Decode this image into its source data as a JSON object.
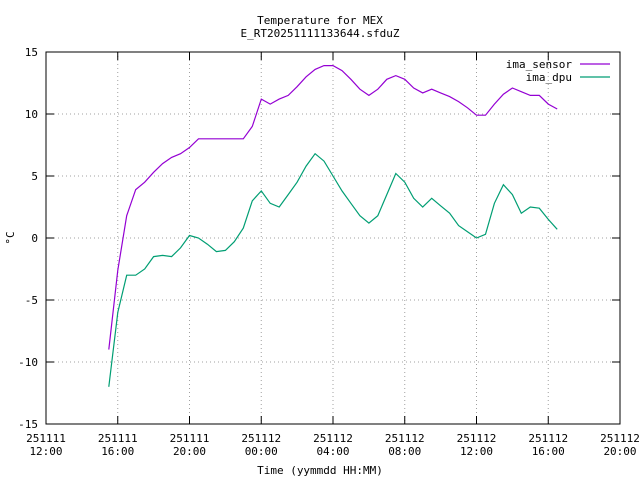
{
  "chart_data": {
    "type": "line",
    "title": "Temperature for MEX",
    "subtitle": "E_RT20251111133644.sfduZ",
    "xlabel": "Time (yymmdd HH:MM)",
    "ylabel": "°C",
    "x": [
      "251111 15:30",
      "251111 16:00",
      "251111 16:30",
      "251111 17:00",
      "251111 17:30",
      "251111 18:00",
      "251111 18:30",
      "251111 19:00",
      "251111 19:30",
      "251111 20:00",
      "251111 20:30",
      "251111 21:00",
      "251111 21:30",
      "251111 22:00",
      "251111 22:30",
      "251111 23:00",
      "251111 23:30",
      "251112 00:00",
      "251112 00:30",
      "251112 01:00",
      "251112 01:30",
      "251112 02:00",
      "251112 02:30",
      "251112 03:00",
      "251112 03:30",
      "251112 04:00",
      "251112 04:30",
      "251112 05:00",
      "251112 05:30",
      "251112 06:00",
      "251112 06:30",
      "251112 07:00",
      "251112 07:30",
      "251112 08:00",
      "251112 08:30",
      "251112 09:00",
      "251112 09:30",
      "251112 10:00",
      "251112 10:30",
      "251112 11:00",
      "251112 11:30",
      "251112 12:00",
      "251112 12:30",
      "251112 13:00",
      "251112 13:30",
      "251112 14:00",
      "251112 14:30",
      "251112 15:00",
      "251112 15:30",
      "251112 16:00",
      "251112 16:30"
    ],
    "series": [
      {
        "name": "ima_sensor",
        "color": "#9400d3",
        "values": [
          -9,
          -2.6,
          1.8,
          3.9,
          4.5,
          5.3,
          6,
          6.5,
          6.8,
          7.3,
          8,
          8,
          8,
          8,
          8,
          8,
          9,
          11.2,
          10.8,
          11.2,
          11.5,
          12.2,
          13,
          13.6,
          13.9,
          13.9,
          13.5,
          12.8,
          12,
          11.5,
          12,
          12.8,
          13.1,
          12.8,
          12.1,
          11.7,
          12,
          11.7,
          11.4,
          11,
          10.5,
          9.9,
          9.9,
          10.8,
          11.6,
          12.1,
          11.8,
          11.5,
          11.5,
          10.8,
          10.4
        ]
      },
      {
        "name": "ima_dpu",
        "color": "#009e73",
        "values": [
          -12,
          -6,
          -3,
          -3,
          -2.5,
          -1.5,
          -1.4,
          -1.5,
          -0.8,
          0.2,
          0,
          -0.5,
          -1.1,
          -1,
          -0.3,
          0.8,
          3,
          3.8,
          2.8,
          2.5,
          3.5,
          4.5,
          5.8,
          6.8,
          6.2,
          5,
          3.8,
          2.8,
          1.8,
          1.2,
          1.8,
          3.5,
          5.2,
          4.5,
          3.2,
          2.5,
          3.2,
          2.6,
          2,
          1,
          0.5,
          0,
          0.3,
          2.8,
          4.3,
          3.5,
          2,
          2.5,
          2.4,
          1.5,
          0.7
        ]
      }
    ],
    "xlim": [
      "251111 12:00",
      "251112 20:00"
    ],
    "xticks": [
      "251111 12:00",
      "251111 16:00",
      "251111 20:00",
      "251112 00:00",
      "251112 04:00",
      "251112 08:00",
      "251112 12:00",
      "251112 16:00",
      "251112 20:00"
    ],
    "ylim": [
      -15,
      15
    ],
    "yticks": [
      -15,
      -10,
      -5,
      0,
      5,
      10,
      15
    ],
    "grid": true,
    "legend": "top-right"
  }
}
